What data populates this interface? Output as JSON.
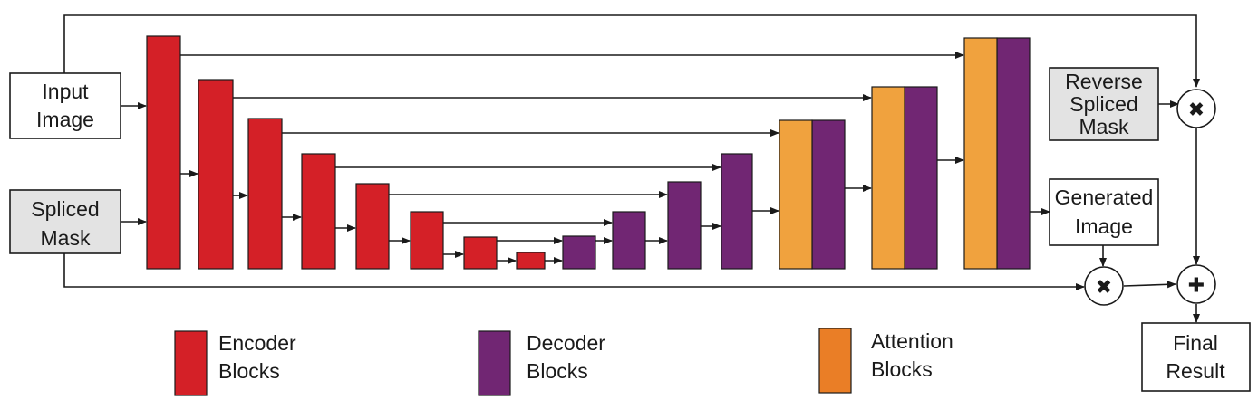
{
  "colors": {
    "encoder": "#d42027",
    "decoder": "#712673",
    "attention": "#f0a23e",
    "legend_attention": "#ea7e26",
    "mask_fill": "#e3e3e3",
    "line": "#1a1a1a"
  },
  "inputs": {
    "input_image": [
      "Input",
      "Image"
    ],
    "spliced_mask": [
      "Spliced",
      "Mask"
    ]
  },
  "side_boxes": {
    "reverse_spliced_mask": [
      "Reverse",
      "Spliced",
      "Mask"
    ],
    "generated_image": [
      "Generated",
      "Image"
    ],
    "final_result": [
      "Final",
      "Result"
    ]
  },
  "operations": {
    "multiply_top": "✖",
    "multiply_bottom": "✖",
    "add": "✚"
  },
  "legend": [
    {
      "label": [
        "Encoder",
        "Blocks"
      ],
      "color_key": "encoder"
    },
    {
      "label": [
        "Decoder",
        "Blocks"
      ],
      "color_key": "decoder"
    },
    {
      "label": [
        "Attention",
        "Blocks"
      ],
      "color_key": "legend_attention"
    }
  ]
}
